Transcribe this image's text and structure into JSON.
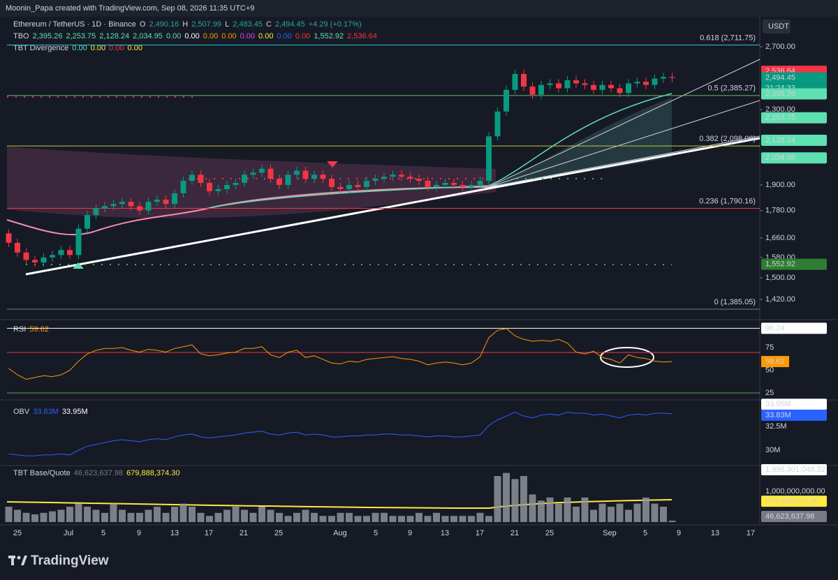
{
  "header": {
    "credit": "Moonin_Papa created with TradingView.com, Sep 08, 2026 11:35 UTC+9",
    "symbol": "Ethereum / TetherUS · 1D · Binance",
    "ohlc": [
      {
        "text": "O",
        "color": "#d1d4dc"
      },
      {
        "text": "2,490.16",
        "color": "#26a69a"
      },
      {
        "text": "H",
        "color": "#d1d4dc"
      },
      {
        "text": "2,507.99",
        "color": "#26a69a"
      },
      {
        "text": "L",
        "color": "#d1d4dc"
      },
      {
        "text": "2,483.45",
        "color": "#26a69a"
      },
      {
        "text": "C",
        "color": "#d1d4dc"
      },
      {
        "text": "2,494.45",
        "color": "#26a69a"
      },
      {
        "text": "+4.29 (+0.17%)",
        "color": "#26a69a"
      }
    ],
    "tbo": {
      "name": "TBO",
      "items": [
        {
          "text": "2,395.26",
          "color": "#5ee0b0"
        },
        {
          "text": "2,253.75",
          "color": "#5ee0b0"
        },
        {
          "text": "2,128.24",
          "color": "#5ee0b0"
        },
        {
          "text": "2,034.95",
          "color": "#5ee0b0"
        },
        {
          "text": "0.00",
          "color": "#5ee0b0"
        },
        {
          "text": "0.00",
          "color": "#ffffff"
        },
        {
          "text": "0.00",
          "color": "#ff9800"
        },
        {
          "text": "0.00",
          "color": "#ff9800"
        },
        {
          "text": "0.00",
          "color": "#e040fb"
        },
        {
          "text": "0.00",
          "color": "#ffeb3b"
        },
        {
          "text": "0.00",
          "color": "#2962ff"
        },
        {
          "text": "0.00",
          "color": "#f23645"
        },
        {
          "text": "1,552.92",
          "color": "#5ee0b0"
        },
        {
          "text": "2,536.64",
          "color": "#f23645"
        }
      ]
    },
    "divergence": {
      "name": "TBT Divergence",
      "items": [
        {
          "text": "0.00",
          "color": "#5ee0b0"
        },
        {
          "text": "0.00",
          "color": "#ffeb3b"
        },
        {
          "text": "0.00",
          "color": "#f23645"
        },
        {
          "text": "0.00",
          "color": "#ffeb3b"
        }
      ]
    }
  },
  "currency": "USDT",
  "price_axis": {
    "ticks": [
      {
        "value": 2700,
        "label": "2,700.00"
      },
      {
        "value": 2300,
        "label": "2,300.00"
      },
      {
        "value": 1900,
        "label": "1,900.00"
      },
      {
        "value": 1780,
        "label": "1,780.00"
      },
      {
        "value": 1660,
        "label": "1,660.00"
      },
      {
        "value": 1580,
        "label": "1,580.00"
      },
      {
        "value": 1500,
        "label": "1,500.00"
      },
      {
        "value": 1420,
        "label": "1,420.00"
      }
    ],
    "log": true
  },
  "price_labels": [
    {
      "value": 2536.64,
      "label": "2,536.64",
      "color": "#f23645"
    },
    {
      "value": 2494.45,
      "label": "2,494.45",
      "sub": "21:24:33",
      "color": "#089981"
    },
    {
      "value": 2395.26,
      "label": "2,395.26",
      "color": "#5ee0b0"
    },
    {
      "value": 2253.75,
      "label": "2,253.75",
      "color": "#5ee0b0"
    },
    {
      "value": 2128.24,
      "label": "2,128.24",
      "color": "#5ee0b0"
    },
    {
      "value": 2034.95,
      "label": "2,034.95",
      "color": "#5ee0b0"
    },
    {
      "value": 1552.92,
      "label": "1,552.92",
      "color": "#2e7d32"
    }
  ],
  "fib": [
    {
      "label": "0.618 (2,711.75)",
      "price": 2711.75,
      "color": "#26c6da"
    },
    {
      "label": "0.5 (2,385.27)",
      "price": 2385.27,
      "color": "#66bb6a"
    },
    {
      "label": "0.382 (2,098.09)",
      "price": 2098.09,
      "color": "#c0ca33"
    },
    {
      "label": "0.236 (1,790.16)",
      "price": 1790.16,
      "color": "#f23645"
    },
    {
      "label": "0 (1,385.05)",
      "price": 1385.05,
      "color": "#787b86"
    }
  ],
  "closes": [
    1640,
    1600,
    1570,
    1560,
    1580,
    1590,
    1610,
    1590,
    1700,
    1760,
    1790,
    1800,
    1810,
    1820,
    1800,
    1780,
    1820,
    1830,
    1810,
    1860,
    1920,
    1950,
    1910,
    1870,
    1880,
    1900,
    1910,
    1950,
    1960,
    1980,
    1930,
    1900,
    1950,
    1970,
    1930,
    1950,
    1930,
    1890,
    1880,
    1900,
    1890,
    1920,
    1930,
    1940,
    1950,
    1940,
    1930,
    1920,
    1890,
    1900,
    1910,
    1900,
    1890,
    1900,
    1920,
    2150,
    2290,
    2420,
    2520,
    2440,
    2390,
    2450,
    2460,
    2430,
    2480,
    2460,
    2450,
    2420,
    2450,
    2430,
    2400,
    2460,
    2470,
    2450,
    2490,
    2500,
    2494.45
  ],
  "rsi": {
    "name": "RSI",
    "value": "59.62",
    "ticks": [
      25,
      50,
      75
    ],
    "max": {
      "value": 96.24,
      "label": "96.24"
    },
    "values": [
      52,
      45,
      40,
      42,
      44,
      43,
      45,
      50,
      60,
      68,
      72,
      74,
      74,
      75,
      72,
      70,
      73,
      72,
      70,
      74,
      76,
      78,
      68,
      66,
      67,
      69,
      70,
      74,
      74,
      76,
      67,
      64,
      70,
      72,
      64,
      66,
      62,
      58,
      57,
      60,
      59,
      62,
      63,
      64,
      65,
      63,
      62,
      60,
      56,
      58,
      59,
      58,
      56,
      58,
      65,
      86,
      94,
      96,
      88,
      84,
      82,
      83,
      82,
      84,
      80,
      70,
      68,
      71,
      64,
      62,
      58,
      67,
      64,
      63,
      60,
      59,
      59.62
    ]
  },
  "obv": {
    "name": "OBV",
    "value": "33.83M",
    "value2": "33.95M",
    "ticks": [
      {
        "value": 30,
        "label": "30M"
      },
      {
        "value": 32.5,
        "label": "32.5M"
      }
    ],
    "labels": [
      {
        "value": 33.95,
        "label": "33.95M",
        "color": "#ffffff"
      },
      {
        "value": 33.83,
        "label": "33.83M",
        "color": "#2962ff"
      }
    ],
    "values": [
      29.6,
      29.5,
      29.4,
      29.4,
      29.5,
      29.5,
      29.6,
      29.5,
      30.0,
      30.4,
      30.6,
      30.8,
      31.0,
      31.1,
      31.0,
      30.9,
      31.1,
      31.2,
      31.1,
      31.4,
      31.6,
      31.7,
      31.4,
      31.3,
      31.4,
      31.5,
      31.6,
      31.8,
      31.9,
      32.0,
      31.7,
      31.6,
      31.8,
      31.9,
      31.6,
      31.7,
      31.6,
      31.4,
      31.4,
      31.5,
      31.5,
      31.6,
      31.6,
      31.7,
      31.7,
      31.6,
      31.6,
      31.5,
      31.4,
      31.5,
      31.5,
      31.4,
      31.4,
      31.5,
      31.6,
      32.6,
      33.2,
      33.6,
      34.0,
      33.6,
      33.4,
      33.7,
      33.8,
      33.7,
      34.0,
      33.9,
      33.9,
      33.7,
      33.8,
      33.6,
      33.4,
      33.7,
      33.8,
      33.7,
      33.9,
      33.9,
      33.83
    ]
  },
  "volume": {
    "name": "TBT Base/Quote",
    "value": "46,623,637.98",
    "value2": "679,888,374.30",
    "ticks": [
      {
        "value": 1000000000,
        "label": "1,000,000,000.00"
      }
    ],
    "labels": [
      {
        "value": 1996301048.32,
        "label": "1,996,301,048.32",
        "color": "#ffffff"
      },
      {
        "value": 679888374.3,
        "label": "679,888,374.30",
        "color": "#ffeb3b"
      },
      {
        "value": 46623637.98,
        "label": "46,623,637.98",
        "color": "#787b86"
      }
    ],
    "values": [
      500000000.0,
      400000000.0,
      300000000.0,
      250000000.0,
      300000000.0,
      350000000.0,
      400000000.0,
      500000000.0,
      600000000.0,
      500000000.0,
      400000000.0,
      300000000.0,
      600000000.0,
      400000000.0,
      300000000.0,
      300000000.0,
      400000000.0,
      500000000.0,
      300000000.0,
      500000000.0,
      600000000.0,
      500000000.0,
      300000000.0,
      200000000.0,
      300000000.0,
      400000000.0,
      500000000.0,
      400000000.0,
      300000000.0,
      500000000.0,
      400000000.0,
      300000000.0,
      200000000.0,
      300000000.0,
      400000000.0,
      300000000.0,
      200000000.0,
      200000000.0,
      300000000.0,
      300000000.0,
      200000000.0,
      200000000.0,
      300000000.0,
      300000000.0,
      200000000.0,
      200000000.0,
      200000000.0,
      300000000.0,
      200000000.0,
      300000000.0,
      200000000.0,
      200000000.0,
      200000000.0,
      200000000.0,
      300000000.0,
      200000000.0,
      1500000000.0,
      1600000000.0,
      1400000000.0,
      1500000000.0,
      900000000.0,
      700000000.0,
      800000000.0,
      600000000.0,
      800000000.0,
      500000000.0,
      800000000.0,
      400000000.0,
      600000000.0,
      500000000.0,
      600000000.0,
      400000000.0,
      600000000.0,
      800000000.0,
      600000000.0,
      500000000.0,
      46623637.98
    ]
  },
  "dates": [
    "25",
    "Jul",
    "5",
    "9",
    "13",
    "17",
    "21",
    "25",
    "Aug",
    "5",
    "9",
    "13",
    "17",
    "21",
    "25",
    "Sep",
    "5",
    "9",
    "13",
    "17"
  ],
  "footer": "TradingView"
}
